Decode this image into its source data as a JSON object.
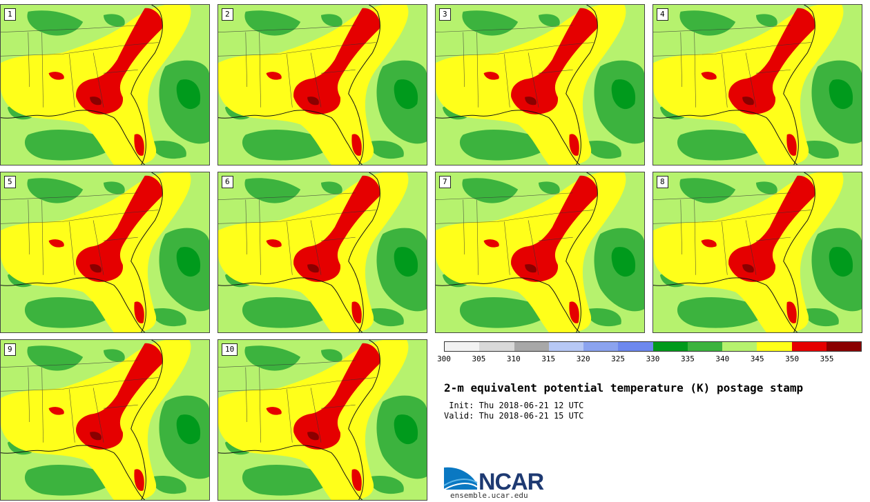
{
  "panels": [
    "1",
    "2",
    "3",
    "4",
    "5",
    "6",
    "7",
    "8",
    "9",
    "10"
  ],
  "colorbar": {
    "ticks": [
      "300",
      "305",
      "310",
      "315",
      "320",
      "325",
      "330",
      "335",
      "340",
      "345",
      "350",
      "355"
    ],
    "colors": [
      "#f2f2f2",
      "#d9d9d9",
      "#a8a8a8",
      "#b7c8f5",
      "#8ba3ef",
      "#6d88ee",
      "#009a1c",
      "#3cb33e",
      "#b6f26e",
      "#ffff1a",
      "#e50000",
      "#8a0000"
    ]
  },
  "title": "2-m equivalent potential temperature (K) postage stamp",
  "init": " Init: Thu 2018-06-21 12 UTC",
  "valid": "Valid: Thu 2018-06-21 15 UTC",
  "logo": {
    "name": "NCAR",
    "url": "ensemble.ucar.edu"
  }
}
